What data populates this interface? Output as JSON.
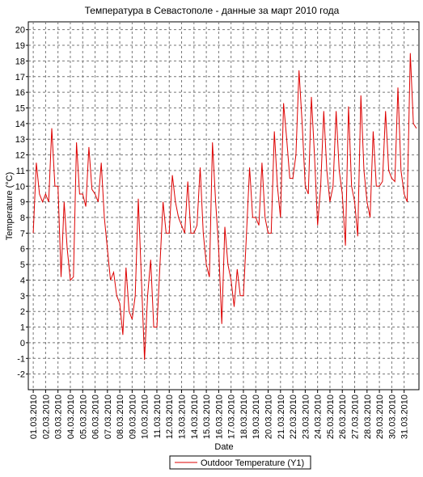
{
  "chart_data": {
    "type": "line",
    "title": "Температура в Севастополе - данные за март 2010 года",
    "x_label": "Date",
    "y_label": "Temperature (°C)",
    "xlim": [
      0.6,
      32.2
    ],
    "ylim": [
      -3,
      20.5
    ],
    "grid": true,
    "legend": "bottom",
    "xticks": [
      {
        "value": 1,
        "label": "01.03.2010"
      },
      {
        "value": 2,
        "label": "02.03.2010"
      },
      {
        "value": 3,
        "label": "03.03.2010"
      },
      {
        "value": 4,
        "label": "04.03.2010"
      },
      {
        "value": 5,
        "label": "05.03.2010"
      },
      {
        "value": 6,
        "label": "06.03.2010"
      },
      {
        "value": 7,
        "label": "07.03.2010"
      },
      {
        "value": 8,
        "label": "08.03.2010"
      },
      {
        "value": 9,
        "label": "09.03.2010"
      },
      {
        "value": 10,
        "label": "10.03.2010"
      },
      {
        "value": 11,
        "label": "11.03.2010"
      },
      {
        "value": 12,
        "label": "12.03.2010"
      },
      {
        "value": 13,
        "label": "13.03.2010"
      },
      {
        "value": 14,
        "label": "14.03.2010"
      },
      {
        "value": 15,
        "label": "15.03.2010"
      },
      {
        "value": 16,
        "label": "16.03.2010"
      },
      {
        "value": 17,
        "label": "17.03.2010"
      },
      {
        "value": 18,
        "label": "18.03.2010"
      },
      {
        "value": 19,
        "label": "19.03.2010"
      },
      {
        "value": 20,
        "label": "20.03.2010"
      },
      {
        "value": 21,
        "label": "21.03.2010"
      },
      {
        "value": 22,
        "label": "22.03.2010"
      },
      {
        "value": 23,
        "label": "23.03.2010"
      },
      {
        "value": 24,
        "label": "24.03.2010"
      },
      {
        "value": 25,
        "label": "25.03.2010"
      },
      {
        "value": 26,
        "label": "26.03.2010"
      },
      {
        "value": 27,
        "label": "27.03.2010"
      },
      {
        "value": 28,
        "label": "28.03.2010"
      },
      {
        "value": 29,
        "label": "29.03.2010"
      },
      {
        "value": 30,
        "label": "30.03.2010"
      },
      {
        "value": 31,
        "label": "31.03.2010"
      }
    ],
    "yticks": [
      -2,
      -1,
      0,
      1,
      2,
      3,
      4,
      5,
      6,
      7,
      8,
      9,
      10,
      11,
      12,
      13,
      14,
      15,
      16,
      17,
      18,
      19,
      20
    ],
    "x": [
      1,
      1.25,
      1.5,
      1.75,
      2,
      2.25,
      2.5,
      2.75,
      3,
      3.25,
      3.5,
      3.75,
      4,
      4.25,
      4.5,
      4.75,
      5,
      5.25,
      5.5,
      5.75,
      6,
      6.25,
      6.5,
      6.75,
      7,
      7.25,
      7.5,
      7.75,
      8,
      8.25,
      8.5,
      8.75,
      9,
      9.25,
      9.5,
      9.75,
      10,
      10.25,
      10.5,
      10.75,
      11,
      11.25,
      11.5,
      11.75,
      12,
      12.25,
      12.5,
      12.75,
      13,
      13.25,
      13.5,
      13.75,
      14,
      14.25,
      14.5,
      14.75,
      15,
      15.25,
      15.5,
      15.75,
      16,
      16.25,
      16.5,
      16.75,
      17,
      17.25,
      17.5,
      17.75,
      18,
      18.25,
      18.5,
      18.75,
      19,
      19.25,
      19.5,
      19.75,
      20,
      20.25,
      20.5,
      20.75,
      21,
      21.25,
      21.5,
      21.75,
      22,
      22.25,
      22.5,
      22.75,
      23,
      23.25,
      23.5,
      23.75,
      24,
      24.25,
      24.5,
      24.75,
      25,
      25.25,
      25.5,
      25.75,
      26,
      26.25,
      26.5,
      26.75,
      27,
      27.25,
      27.5,
      27.75,
      28,
      28.25,
      28.5,
      28.75,
      29,
      29.25,
      29.5,
      29.75,
      30,
      30.25,
      30.5,
      30.75,
      31,
      31.25,
      31.5,
      31.75,
      32
    ],
    "series": [
      {
        "name": "Outdoor Temperature (Y1)",
        "color": "#dd0000",
        "values": [
          7,
          11.5,
          9.5,
          9,
          9.5,
          9,
          13.7,
          10,
          10,
          4.2,
          9,
          6,
          4,
          4.2,
          12.8,
          9.5,
          9.5,
          8.7,
          12.5,
          9.8,
          9.5,
          9,
          11.5,
          8,
          6,
          4,
          4.5,
          3,
          2.5,
          0.5,
          4.8,
          2,
          1.5,
          3,
          9.2,
          4,
          -1.1,
          3,
          5.3,
          1,
          1,
          5,
          9,
          7,
          7,
          10.7,
          9,
          8,
          7.5,
          7,
          10.3,
          7,
          7,
          7.5,
          11.2,
          7,
          5,
          4.2,
          12.8,
          9,
          6,
          1.2,
          7.4,
          5,
          4,
          2.3,
          4.7,
          3,
          3,
          7,
          11.2,
          8,
          8,
          7.5,
          11.5,
          8,
          7,
          7,
          13.5,
          10,
          8,
          15.3,
          13,
          10.5,
          10.5,
          12,
          17.4,
          14,
          10,
          9.5,
          15.7,
          12,
          7.5,
          10,
          14.8,
          11,
          9,
          10,
          14.8,
          11,
          9.5,
          6.2,
          15.1,
          10,
          9,
          6.8,
          15.8,
          11,
          9,
          8,
          13.5,
          10,
          10,
          10.3,
          14.8,
          11,
          10.5,
          10.3,
          16.3,
          11,
          9.5,
          9,
          18.5,
          14,
          13.7
        ]
      }
    ]
  }
}
